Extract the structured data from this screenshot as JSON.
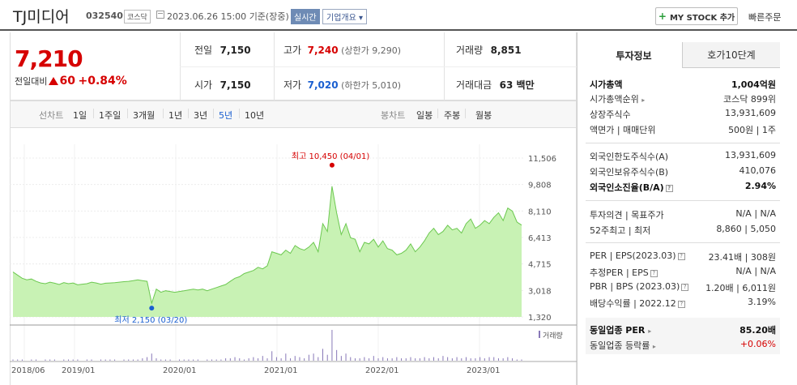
{
  "header": {
    "stock_name": "TJ미디어",
    "stock_code": "032540",
    "market_tag": "코스닥",
    "datetime": "2023.06.26 15:00",
    "basis": "기준(장중)",
    "realtime_badge": "실시간",
    "company_overview": "기업개요",
    "my_stock_button": "MY STOCK 추가",
    "quick_order": "빠른주문"
  },
  "price": {
    "current": "7,210",
    "change_label": "전일대비",
    "change_amount": "60",
    "change_percent": "+0.84%"
  },
  "quote": {
    "prev_close_label": "전일",
    "prev_close": "7,150",
    "high_label": "고가",
    "high": "7,240",
    "upper_limit": "(상한가 9,290)",
    "volume_label": "거래량",
    "volume": "8,851",
    "open_label": "시가",
    "open": "7,150",
    "low_label": "저가",
    "low": "7,020",
    "lower_limit": "(하한가 5,010)",
    "trade_value_label": "거래대금",
    "trade_value": "63 백만"
  },
  "range_tabs": {
    "line_chart_label": "선차트",
    "items": [
      "1일",
      "1주일",
      "3개월",
      "1년",
      "3년",
      "5년",
      "10년"
    ],
    "selected": "5년",
    "candle_label": "봉차트",
    "candle_items": [
      "일봉",
      "주봉",
      "월봉"
    ]
  },
  "chart_data": {
    "type": "area",
    "y_ticks": [
      "11,506",
      "9,808",
      "8,110",
      "6,413",
      "4,715",
      "3,018",
      "1,320"
    ],
    "ylim": [
      1320,
      11506
    ],
    "x_ticks": [
      "2018/06",
      "2019/01",
      "2020/01",
      "2021/01",
      "2022/01",
      "2023/01"
    ],
    "high_annotation": "최고 10,450 (04/01)",
    "low_annotation": "최저 2,150 (03/20)",
    "volume_legend": "거래량",
    "grid": true,
    "series": [
      {
        "values": [
          4200,
          4000,
          3800,
          3700,
          3750,
          3600,
          3500,
          3450,
          3550,
          3480,
          3400,
          3520,
          3450,
          3500,
          3380,
          3420,
          3450,
          3550,
          3500,
          3420,
          3480,
          3500,
          3520,
          3550,
          3580,
          3600,
          3650,
          3700,
          3650,
          3600,
          2200,
          3100,
          2900,
          3000,
          2950,
          2900,
          2950,
          3000,
          3050,
          3100,
          3050,
          3100,
          3000,
          3100,
          3200,
          3300,
          3400,
          3600,
          3800,
          3900,
          4100,
          4200,
          4300,
          4500,
          4400,
          4600,
          5500,
          5400,
          5300,
          5600,
          5400,
          5900,
          5700,
          5600,
          5800,
          6100,
          5500,
          7300,
          6800,
          9700,
          8000,
          6600,
          7300,
          6400,
          6300,
          5500,
          6100,
          6000,
          6300,
          5800,
          6200,
          5700,
          5600,
          5300,
          5400,
          5600,
          6000,
          5500,
          5800,
          6200,
          6700,
          7000,
          6600,
          6800,
          7200,
          6900,
          7000,
          6700,
          7300,
          7600,
          7000,
          7200,
          7500,
          7300,
          7700,
          8000,
          7500,
          8300,
          8100,
          7400,
          7210
        ],
        "volumes": [
          1,
          1,
          1,
          0,
          1,
          1,
          0,
          1,
          1,
          1,
          0,
          1,
          1,
          1,
          1,
          0,
          1,
          1,
          0,
          1,
          1,
          1,
          1,
          0,
          1,
          1,
          1,
          1,
          2,
          3,
          6,
          2,
          1,
          1,
          1,
          0,
          1,
          1,
          1,
          1,
          1,
          0,
          1,
          1,
          1,
          1,
          2,
          2,
          3,
          2,
          1,
          2,
          3,
          2,
          4,
          2,
          8,
          3,
          2,
          6,
          2,
          4,
          3,
          2,
          5,
          6,
          3,
          10,
          5,
          26,
          9,
          4,
          6,
          3,
          2,
          2,
          3,
          2,
          4,
          2,
          3,
          2,
          2,
          3,
          2,
          2,
          3,
          2,
          2,
          3,
          2,
          3,
          2,
          4,
          3,
          2,
          3,
          2,
          3,
          2,
          2,
          3,
          2,
          3,
          3,
          2,
          2,
          3,
          2,
          1,
          1
        ]
      }
    ]
  },
  "tabs": {
    "invest_info": "투자정보",
    "order_book": "호가10단계"
  },
  "invest_info": {
    "market_cap_label": "시가총액",
    "market_cap": "1,004억원",
    "market_cap_rank_label": "시가총액순위",
    "market_cap_rank": "코스닥 899위",
    "shares_label": "상장주식수",
    "shares": "13,931,609",
    "par_label": "액면가 | 매매단위",
    "par": "500원 | 1주",
    "foreign_limit_label": "외국인한도주식수(A)",
    "foreign_limit": "13,931,609",
    "foreign_hold_label": "외국인보유주식수(B)",
    "foreign_hold": "410,076",
    "foreign_ratio_label": "외국인소진율(B/A)",
    "foreign_ratio": "2.94%",
    "opinion_label": "투자의견 | 목표주가",
    "opinion": "N/A | N/A",
    "w52_label": "52주최고 | 최저",
    "w52": "8,860 | 5,050",
    "per_label": "PER | EPS(2023.03)",
    "per": "23.41배 | 308원",
    "est_per_label": "추정PER | EPS",
    "est_per": "N/A | N/A",
    "pbr_label": "PBR | BPS (2023.03)",
    "pbr": "1.20배 | 6,011원",
    "div_label": "배당수익률 | 2022.12",
    "div": "3.19%",
    "industry_per_label": "동일업종 PER",
    "industry_per": "85.20배",
    "industry_change_label": "동일업종 등락률",
    "industry_change": "+0.06%"
  },
  "colors": {
    "up": "#d60000",
    "down": "#1a5fd0",
    "area_fill": "#c8f2b4",
    "area_line": "#6cc850"
  }
}
